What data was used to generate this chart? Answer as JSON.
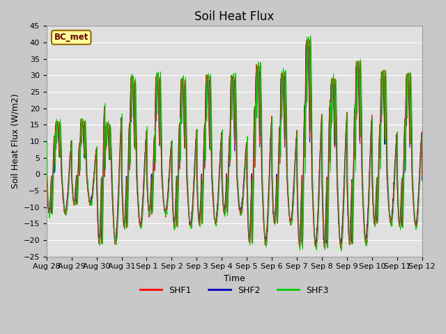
{
  "title": "Soil Heat Flux",
  "ylabel": "Soil Heat Flux (W/m2)",
  "xlabel": "Time",
  "ylim": [
    -25,
    45
  ],
  "yticks": [
    -25,
    -20,
    -15,
    -10,
    -5,
    0,
    5,
    10,
    15,
    20,
    25,
    30,
    35,
    40,
    45
  ],
  "xtick_labels": [
    "Aug 28",
    "Aug 29",
    "Aug 30",
    "Aug 31",
    "Sep 1",
    "Sep 2",
    "Sep 3",
    "Sep 4",
    "Sep 5",
    "Sep 6",
    "Sep 7",
    "Sep 8",
    "Sep 9",
    "Sep 10",
    "Sep 11",
    "Sep 12"
  ],
  "legend_labels": [
    "SHF1",
    "SHF2",
    "SHF3"
  ],
  "legend_colors": [
    "#ff0000",
    "#0000bb",
    "#00cc00"
  ],
  "site_label": "BC_met",
  "site_label_bg": "#ffff99",
  "site_label_border": "#996600",
  "site_label_text_color": "#660000",
  "shf1_color": "#ff0000",
  "shf2_color": "#0000bb",
  "shf3_color": "#00cc00",
  "plot_bg_color": "#e0e0e0",
  "fig_bg_color": "#c8c8c8",
  "grid_color": "#ffffff",
  "title_fontsize": 12,
  "axis_label_fontsize": 9,
  "tick_fontsize": 8,
  "day_peak_pos": [
    16,
    16,
    15,
    29,
    30,
    29,
    30,
    30,
    33,
    31,
    41,
    29,
    34,
    31,
    30
  ],
  "day_peak_neg": [
    -12,
    -9,
    -21,
    -16,
    -12,
    -16,
    -15,
    -12,
    -21,
    -15,
    -22,
    -22,
    -21,
    -15,
    -16
  ]
}
